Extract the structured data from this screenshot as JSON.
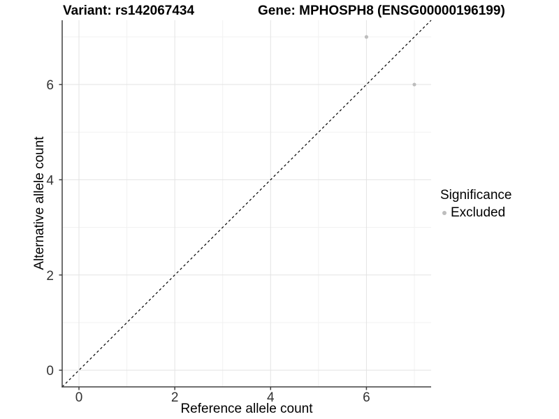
{
  "chart_data": {
    "type": "scatter",
    "title_left": "Variant: rs142067434",
    "title_right": "Gene: MPHOSPH8 (ENSG00000196199)",
    "xlabel": "Reference allele count",
    "ylabel": "Alternative allele count",
    "xlim": [
      -0.35,
      7.35
    ],
    "ylim": [
      -0.35,
      7.35
    ],
    "x_ticks": [
      0,
      2,
      4,
      6
    ],
    "y_ticks": [
      0,
      2,
      4,
      6
    ],
    "x_minor_ticks": [
      1,
      3,
      5,
      7
    ],
    "y_minor_ticks": [
      1,
      3,
      5,
      7
    ],
    "grid": "major+minor",
    "reference_line": {
      "type": "identity",
      "equation": "y = x",
      "style": "dashed",
      "color": "#000000"
    },
    "series": [
      {
        "name": "Excluded",
        "color": "#bdbdbd",
        "points": [
          {
            "x": 6,
            "y": 7
          },
          {
            "x": 7,
            "y": 6
          }
        ]
      }
    ],
    "legend": {
      "title": "Significance",
      "position": "right",
      "entries": [
        {
          "label": "Excluded",
          "color": "#bdbdbd"
        }
      ]
    },
    "colors": {
      "background": "#ffffff",
      "grid_major": "#e3e3e3",
      "grid_minor": "#f1f1f1",
      "axis_line": "#404040",
      "tick_mark": "#404040",
      "tick_label": "#333333",
      "point": "#bdbdbd",
      "dashed_line": "#000000"
    }
  }
}
